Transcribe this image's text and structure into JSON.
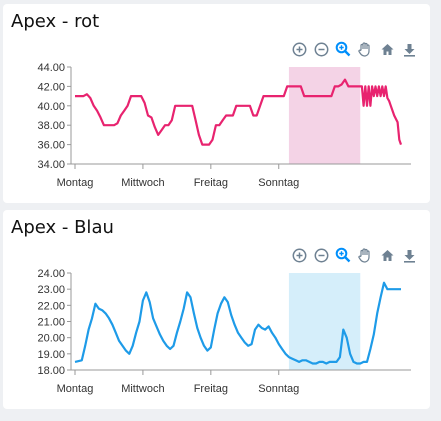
{
  "cards": [
    {
      "title": "Apex - rot"
    },
    {
      "title": "Apex - Blau"
    }
  ],
  "toolbar": {
    "icons": [
      "zoom-in-icon",
      "zoom-out-icon",
      "selection-zoom-icon",
      "pan-icon",
      "reset-home-icon",
      "download-icon"
    ]
  },
  "chart_data": [
    {
      "type": "line",
      "title": "Apex - rot",
      "color": "#e8236f",
      "ylim": [
        34,
        44
      ],
      "yticks": [
        "44.00",
        "42.00",
        "40.00",
        "38.00",
        "36.00",
        "34.00"
      ],
      "xticks": [
        "Montag",
        "Mittwoch",
        "Freitag",
        "Sonntag"
      ],
      "xlim": [
        0,
        9.6
      ],
      "annotation_range": {
        "x": [
          6.3,
          8.4
        ],
        "color": "#f4d3e6"
      },
      "x": [
        0,
        0.1,
        0.25,
        0.35,
        0.45,
        0.55,
        0.65,
        0.75,
        0.85,
        0.95,
        1.05,
        1.15,
        1.25,
        1.35,
        1.45,
        1.55,
        1.65,
        1.75,
        1.85,
        1.95,
        2.05,
        2.15,
        2.25,
        2.35,
        2.45,
        2.55,
        2.65,
        2.75,
        2.85,
        2.95,
        3.05,
        3.15,
        3.25,
        3.35,
        3.45,
        3.55,
        3.65,
        3.75,
        3.85,
        3.95,
        4.05,
        4.15,
        4.25,
        4.35,
        4.45,
        4.55,
        4.65,
        4.75,
        4.85,
        4.95,
        5.05,
        5.15,
        5.25,
        5.35,
        5.45,
        5.55,
        5.65,
        5.75,
        5.85,
        5.95,
        6.05,
        6.15,
        6.25,
        6.35,
        6.45,
        6.55,
        6.65,
        6.75,
        6.85,
        6.95,
        7.05,
        7.15,
        7.25,
        7.35,
        7.45,
        7.55,
        7.65,
        7.75,
        7.85,
        7.95,
        8.05,
        8.15,
        8.25,
        8.35,
        8.45,
        8.55,
        8.65,
        8.75,
        8.85,
        8.95,
        9.05,
        9.15,
        9.25
      ],
      "values": [
        41,
        41,
        41,
        41.2,
        40.8,
        40,
        39.5,
        38.8,
        38,
        38,
        38,
        38,
        38.2,
        39,
        39.5,
        40,
        41,
        41,
        41,
        41,
        40.3,
        39,
        38.8,
        37.8,
        37,
        37.5,
        38,
        38,
        38.5,
        40,
        40,
        40,
        40,
        40,
        40,
        38.5,
        37,
        36,
        36,
        36,
        36.5,
        38,
        38,
        38.5,
        39,
        39,
        39,
        40,
        40,
        40,
        40,
        40,
        39,
        39,
        40,
        41,
        41,
        41,
        41,
        41,
        41,
        41,
        42,
        42,
        42,
        42,
        42,
        41,
        41,
        41,
        41,
        41,
        41,
        41,
        41,
        41,
        42,
        42,
        42.2,
        42.7,
        42,
        42,
        42,
        42,
        42,
        42,
        42,
        42,
        42,
        42,
        42,
        42,
        40.5
      ],
      "values_tail": {
        "x": [
          8.4,
          8.5,
          8.6,
          8.7,
          8.8,
          8.9,
          9.0,
          9.1,
          9.2,
          9.3,
          9.4,
          9.5
        ],
        "values": [
          42,
          40,
          40,
          40,
          41,
          41,
          41,
          41,
          40.8,
          40,
          39,
          38.3
        ]
      },
      "values_end": {
        "x": [
          9.55,
          9.6
        ],
        "values": [
          36.5,
          36
        ]
      }
    },
    {
      "type": "line",
      "title": "Apex - Blau",
      "color": "#1e9be8",
      "ylim": [
        18,
        24
      ],
      "yticks": [
        "24.00",
        "23.00",
        "22.00",
        "21.00",
        "20.00",
        "19.00",
        "18.00"
      ],
      "xticks": [
        "Montag",
        "Mittwoch",
        "Freitag",
        "Sonntag"
      ],
      "xlim": [
        0,
        9.6
      ],
      "annotation_range": {
        "x": [
          6.3,
          8.4
        ],
        "color": "#d5eefa"
      },
      "x": [
        0,
        0.2,
        0.3,
        0.4,
        0.5,
        0.6,
        0.7,
        0.8,
        0.9,
        1.0,
        1.1,
        1.2,
        1.3,
        1.4,
        1.5,
        1.6,
        1.7,
        1.8,
        1.9,
        2.0,
        2.1,
        2.2,
        2.3,
        2.4,
        2.5,
        2.6,
        2.7,
        2.8,
        2.9,
        3.0,
        3.1,
        3.2,
        3.3,
        3.4,
        3.5,
        3.6,
        3.7,
        3.8,
        3.9,
        4.0,
        4.1,
        4.2,
        4.3,
        4.4,
        4.5,
        4.6,
        4.7,
        4.8,
        4.9,
        5.0,
        5.1,
        5.2,
        5.3,
        5.4,
        5.5,
        5.6,
        5.7,
        5.8,
        5.9,
        6.0,
        6.1,
        6.2,
        6.3,
        6.4,
        6.5,
        6.6,
        6.7,
        6.8,
        6.9,
        7.0,
        7.1,
        7.2,
        7.3,
        7.4,
        7.5,
        7.6,
        7.7,
        7.8,
        7.9,
        8.0,
        8.1,
        8.2,
        8.3,
        8.4,
        8.5,
        8.6,
        8.7,
        8.8,
        8.9,
        9.0,
        9.1,
        9.2,
        9.3,
        9.4,
        9.5,
        9.6
      ],
      "values": [
        18.5,
        18.6,
        19.5,
        20.5,
        21.2,
        22.1,
        21.8,
        21.7,
        21.5,
        21.2,
        20.8,
        20.3,
        19.8,
        19.5,
        19.2,
        19.0,
        19.5,
        20.3,
        21,
        22.3,
        22.8,
        22.2,
        21.2,
        20.7,
        20.2,
        19.8,
        19.5,
        19.3,
        19.5,
        20.3,
        21,
        21.8,
        22.8,
        22.5,
        21.5,
        20.6,
        20,
        19.5,
        19.2,
        19.4,
        20.5,
        21.5,
        22.1,
        22.5,
        22.2,
        21.4,
        20.8,
        20.3,
        20.0,
        19.7,
        19.5,
        19.6,
        20.5,
        20.8,
        20.6,
        20.5,
        20.7,
        20.3,
        20.0,
        19.6,
        19.3,
        19.0,
        18.8,
        18.7,
        18.6,
        18.5,
        18.6,
        18.6,
        18.5,
        18.4,
        18.4,
        18.5,
        18.5,
        18.4,
        18.5,
        18.5,
        18.5,
        18.8,
        20.5,
        20,
        19,
        18.5,
        18.4,
        18.4,
        18.5,
        18.5,
        19.3,
        20.2,
        21.5,
        22.5,
        23.4,
        23.0,
        23.0,
        23.0,
        23.0,
        23.0
      ]
    }
  ]
}
